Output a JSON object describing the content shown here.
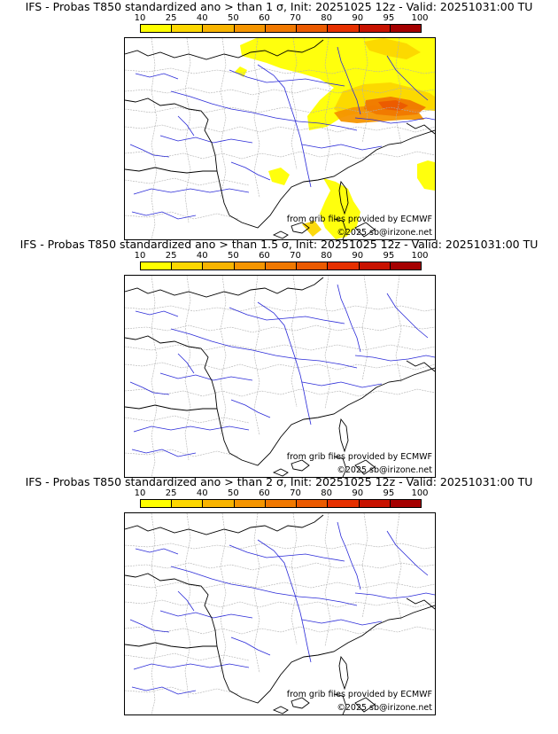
{
  "scale": {
    "labels": [
      "10",
      "25",
      "40",
      "50",
      "60",
      "70",
      "80",
      "90",
      "95",
      "100"
    ],
    "colors": [
      "#ffff00",
      "#fcd700",
      "#f8b400",
      "#f59500",
      "#f07800",
      "#eb5a00",
      "#e63000",
      "#c81200",
      "#a50000",
      "#6e0000"
    ]
  },
  "panels": [
    {
      "title": "IFS - Probas T850  standardized ano > than 1 σ, Init: 20251025 12z - Valid: 20251031:00 TU",
      "has_anomaly": true
    },
    {
      "title": "IFS - Probas T850  standardized ano > than 1.5 σ, Init: 20251025 12z - Valid: 20251031:00 TU",
      "has_anomaly": false
    },
    {
      "title": "IFS - Probas T850  standardized ano > than 2 σ, Init: 20251025 12z - Valid: 20251031:00 TU",
      "has_anomaly": false
    }
  ],
  "credits": {
    "grib": "from grib files provided by ECMWF",
    "copyright": "©2025 sb@irizone.net"
  },
  "colors": {
    "coast": "#000000",
    "rivers": "#2a2ad8",
    "borders": "#b0b0b0"
  }
}
